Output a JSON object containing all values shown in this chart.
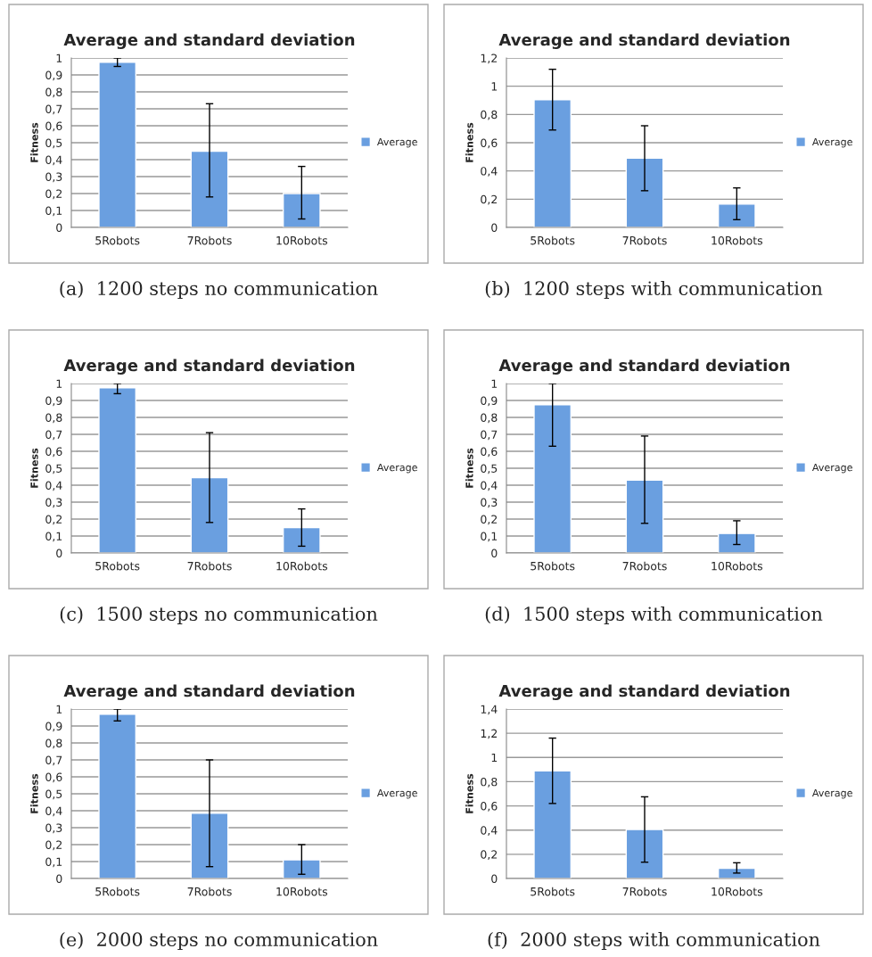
{
  "chart_data": [
    {
      "type": "bar",
      "title": "Average and standard deviation",
      "ylabel": "Fitness",
      "categories": [
        "5Robots",
        "7Robots",
        "10Robots"
      ],
      "series": [
        {
          "name": "Average",
          "color": "#6a9fe0",
          "values": [
            0.975,
            0.45,
            0.2
          ],
          "errors": [
            [
              0.95,
              1
            ],
            [
              0.18,
              0.73
            ],
            [
              0.05,
              0.36
            ]
          ]
        }
      ],
      "ylim": [
        0,
        1
      ],
      "yticks": [
        0,
        {
          "value": 0.1,
          "label": "0,1"
        },
        {
          "value": 0.2,
          "label": "0,2"
        },
        {
          "value": 0.3,
          "label": "0,3"
        },
        {
          "value": 0.4,
          "label": "0,4"
        },
        {
          "value": 0.5,
          "label": "0,5"
        },
        {
          "value": 0.6,
          "label": "0,6"
        },
        {
          "value": 0.7,
          "label": "0,7"
        },
        {
          "value": 0.8,
          "label": "0,8"
        },
        {
          "value": 0.9,
          "label": "0,9"
        },
        1
      ],
      "grid": "y",
      "legend": "right",
      "annotations": [
        "(a)  1200 steps no communication"
      ]
    },
    {
      "type": "bar",
      "title": "Average and standard deviation",
      "ylabel": "Fitness",
      "categories": [
        "5Robots",
        "7Robots",
        "10Robots"
      ],
      "series": [
        {
          "name": "Average",
          "color": "#6a9fe0",
          "values": [
            0.905,
            0.49,
            0.165
          ],
          "errors": [
            [
              0.69,
              1.12
            ],
            [
              0.26,
              0.72
            ],
            [
              0.055,
              0.28
            ]
          ]
        }
      ],
      "ylim": [
        0,
        1.2
      ],
      "yticks": [
        0,
        {
          "value": 0.2,
          "label": "0,2"
        },
        {
          "value": 0.4,
          "label": "0,4"
        },
        {
          "value": 0.6,
          "label": "0,6"
        },
        {
          "value": 0.8,
          "label": "0,8"
        },
        1,
        {
          "value": 1.2,
          "label": "1,2"
        }
      ],
      "grid": "y",
      "legend": "right",
      "annotations": [
        "(b)  1200 steps with communication"
      ]
    },
    {
      "type": "bar",
      "title": "Average and standard deviation",
      "ylabel": "Fitness",
      "categories": [
        "5Robots",
        "7Robots",
        "10Robots"
      ],
      "series": [
        {
          "name": "Average",
          "color": "#6a9fe0",
          "values": [
            0.975,
            0.445,
            0.15
          ],
          "errors": [
            [
              0.94,
              1
            ],
            [
              0.18,
              0.71
            ],
            [
              0.04,
              0.26
            ]
          ]
        }
      ],
      "ylim": [
        0,
        1
      ],
      "yticks": [
        0,
        {
          "value": 0.1,
          "label": "0,1"
        },
        {
          "value": 0.2,
          "label": "0,2"
        },
        {
          "value": 0.3,
          "label": "0,3"
        },
        {
          "value": 0.4,
          "label": "0,4"
        },
        {
          "value": 0.5,
          "label": "0,5"
        },
        {
          "value": 0.6,
          "label": "0,6"
        },
        {
          "value": 0.7,
          "label": "0,7"
        },
        {
          "value": 0.8,
          "label": "0,8"
        },
        {
          "value": 0.9,
          "label": "0,9"
        },
        1
      ],
      "grid": "y",
      "legend": "right",
      "annotations": [
        "(c)  1500 steps no communication"
      ]
    },
    {
      "type": "bar",
      "title": "Average and standard deviation",
      "ylabel": "Fitness",
      "categories": [
        "5Robots",
        "7Robots",
        "10Robots"
      ],
      "series": [
        {
          "name": "Average",
          "color": "#6a9fe0",
          "values": [
            0.875,
            0.43,
            0.115
          ],
          "errors": [
            [
              0.63,
              1
            ],
            [
              0.175,
              0.69
            ],
            [
              0.05,
              0.19
            ]
          ]
        }
      ],
      "ylim": [
        0,
        1
      ],
      "yticks": [
        0,
        {
          "value": 0.1,
          "label": "0,1"
        },
        {
          "value": 0.2,
          "label": "0,2"
        },
        {
          "value": 0.3,
          "label": "0,3"
        },
        {
          "value": 0.4,
          "label": "0,4"
        },
        {
          "value": 0.5,
          "label": "0,5"
        },
        {
          "value": 0.6,
          "label": "0,6"
        },
        {
          "value": 0.7,
          "label": "0,7"
        },
        {
          "value": 0.8,
          "label": "0,8"
        },
        {
          "value": 0.9,
          "label": "0,9"
        },
        1
      ],
      "grid": "y",
      "legend": "right",
      "annotations": [
        "(d)  1500 steps with communication"
      ]
    },
    {
      "type": "bar",
      "title": "Average and standard deviation",
      "ylabel": "Fitness",
      "categories": [
        "5Robots",
        "7Robots",
        "10Robots"
      ],
      "series": [
        {
          "name": "Average",
          "color": "#6a9fe0",
          "values": [
            0.97,
            0.385,
            0.11
          ],
          "errors": [
            [
              0.93,
              1
            ],
            [
              0.07,
              0.7
            ],
            [
              0.025,
              0.2
            ]
          ]
        }
      ],
      "ylim": [
        0,
        1
      ],
      "yticks": [
        0,
        {
          "value": 0.1,
          "label": "0,1"
        },
        {
          "value": 0.2,
          "label": "0,2"
        },
        {
          "value": 0.3,
          "label": "0,3"
        },
        {
          "value": 0.4,
          "label": "0,4"
        },
        {
          "value": 0.5,
          "label": "0,5"
        },
        {
          "value": 0.6,
          "label": "0,6"
        },
        {
          "value": 0.7,
          "label": "0,7"
        },
        {
          "value": 0.8,
          "label": "0,8"
        },
        {
          "value": 0.9,
          "label": "0,9"
        },
        1
      ],
      "grid": "y",
      "legend": "right",
      "annotations": [
        "(e)  2000 steps no communication"
      ]
    },
    {
      "type": "bar",
      "title": "Average and standard deviation",
      "ylabel": "Fitness",
      "categories": [
        "5Robots",
        "7Robots",
        "10Robots"
      ],
      "series": [
        {
          "name": "Average",
          "color": "#6a9fe0",
          "values": [
            0.89,
            0.405,
            0.085
          ],
          "errors": [
            [
              0.62,
              1.16
            ],
            [
              0.135,
              0.675
            ],
            [
              0.045,
              0.13
            ]
          ]
        }
      ],
      "ylim": [
        0,
        1.4
      ],
      "yticks": [
        0,
        {
          "value": 0.2,
          "label": "0,2"
        },
        {
          "value": 0.4,
          "label": "0,4"
        },
        {
          "value": 0.6,
          "label": "0,6"
        },
        {
          "value": 0.8,
          "label": "0,8"
        },
        1,
        {
          "value": 1.2,
          "label": "1,2"
        },
        {
          "value": 1.4,
          "label": "1,4"
        }
      ],
      "grid": "y",
      "legend": "right",
      "annotations": [
        "(f)  2000 steps with communication"
      ]
    }
  ]
}
